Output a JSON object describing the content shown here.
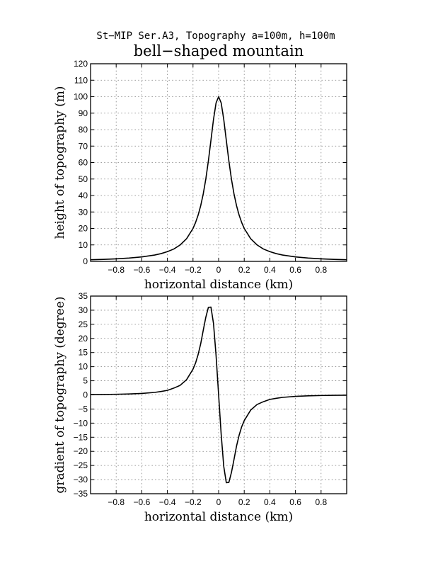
{
  "header": {
    "subtitle": "St−MIP Ser.A3, Topography a=100m, h=100m",
    "title": "bell−shaped mountain"
  },
  "chart_data": [
    {
      "type": "line",
      "xlabel": "horizontal distance (km)",
      "ylabel": "height of topography (m)",
      "xlim": [
        -1.0,
        1.0
      ],
      "ylim": [
        0,
        120
      ],
      "xticks": [
        -0.8,
        -0.6,
        -0.4,
        -0.2,
        0,
        0.2,
        0.4,
        0.6,
        0.8
      ],
      "xticklabels": [
        "−0.8",
        "−0.6",
        "−0.4",
        "−0.2",
        "0",
        "0.2",
        "0.4",
        "0.6",
        "0.8"
      ],
      "yticks": [
        0,
        10,
        20,
        30,
        40,
        50,
        60,
        70,
        80,
        90,
        100,
        110,
        120
      ],
      "yticklabels": [
        "0",
        "10",
        "20",
        "30",
        "40",
        "50",
        "60",
        "70",
        "80",
        "90",
        "100",
        "110",
        "120"
      ],
      "grid": true,
      "series": [
        {
          "x": [
            -1.0,
            -0.9,
            -0.8,
            -0.7,
            -0.6,
            -0.5,
            -0.45,
            -0.4,
            -0.35,
            -0.3,
            -0.25,
            -0.2,
            -0.18,
            -0.16,
            -0.14,
            -0.12,
            -0.1,
            -0.08,
            -0.06,
            -0.04,
            -0.02,
            0,
            0.02,
            0.04,
            0.06,
            0.08,
            0.1,
            0.12,
            0.14,
            0.16,
            0.18,
            0.2,
            0.25,
            0.3,
            0.35,
            0.4,
            0.45,
            0.5,
            0.6,
            0.7,
            0.8,
            0.9,
            1.0
          ],
          "y": [
            0.99,
            1.22,
            1.54,
            2.0,
            2.7,
            3.85,
            4.7,
            5.9,
            7.5,
            10.0,
            13.8,
            20.0,
            23.6,
            28.1,
            33.8,
            41.0,
            50.0,
            61.0,
            73.5,
            86.2,
            96.2,
            100.0,
            96.2,
            86.2,
            73.5,
            61.0,
            50.0,
            41.0,
            33.8,
            28.1,
            23.6,
            20.0,
            13.8,
            10.0,
            7.5,
            5.9,
            4.7,
            3.85,
            2.7,
            2.0,
            1.54,
            1.22,
            0.99
          ]
        }
      ]
    },
    {
      "type": "line",
      "xlabel": "horizontal distance (km)",
      "ylabel": "gradient of topography (degree)",
      "xlim": [
        -1.0,
        1.0
      ],
      "ylim": [
        -35,
        35
      ],
      "xticks": [
        -0.8,
        -0.6,
        -0.4,
        -0.2,
        0,
        0.2,
        0.4,
        0.6,
        0.8
      ],
      "xticklabels": [
        "−0.8",
        "−0.6",
        "−0.4",
        "−0.2",
        "0",
        "0.2",
        "0.4",
        "0.6",
        "0.8"
      ],
      "yticks": [
        -35,
        -30,
        -25,
        -20,
        -15,
        -10,
        -5,
        0,
        5,
        10,
        15,
        20,
        25,
        30,
        35
      ],
      "yticklabels": [
        "−35",
        "−30",
        "−25",
        "−20",
        "−15",
        "−10",
        "−5",
        "0",
        "5",
        "10",
        "15",
        "20",
        "25",
        "30",
        "35"
      ],
      "grid": true,
      "series": [
        {
          "x": [
            -1.0,
            -0.9,
            -0.8,
            -0.7,
            -0.6,
            -0.5,
            -0.45,
            -0.4,
            -0.35,
            -0.3,
            -0.25,
            -0.2,
            -0.18,
            -0.16,
            -0.14,
            -0.12,
            -0.1,
            -0.08,
            -0.06,
            -0.04,
            -0.02,
            0,
            0.02,
            0.04,
            0.06,
            0.08,
            0.1,
            0.12,
            0.14,
            0.16,
            0.18,
            0.2,
            0.25,
            0.3,
            0.35,
            0.4,
            0.45,
            0.5,
            0.6,
            0.7,
            0.8,
            0.9,
            1.0
          ],
          "y": [
            0.11,
            0.15,
            0.22,
            0.33,
            0.52,
            0.88,
            1.2,
            1.6,
            2.4,
            3.4,
            5.4,
            9.1,
            11.3,
            14.3,
            18.1,
            22.9,
            27.5,
            31.0,
            31.1,
            25.3,
            14.0,
            0,
            -14.0,
            -25.3,
            -31.1,
            -31.0,
            -27.5,
            -22.9,
            -18.1,
            -14.3,
            -11.3,
            -9.1,
            -5.4,
            -3.4,
            -2.4,
            -1.6,
            -1.2,
            -0.88,
            -0.52,
            -0.33,
            -0.22,
            -0.15,
            -0.11
          ]
        }
      ]
    }
  ]
}
